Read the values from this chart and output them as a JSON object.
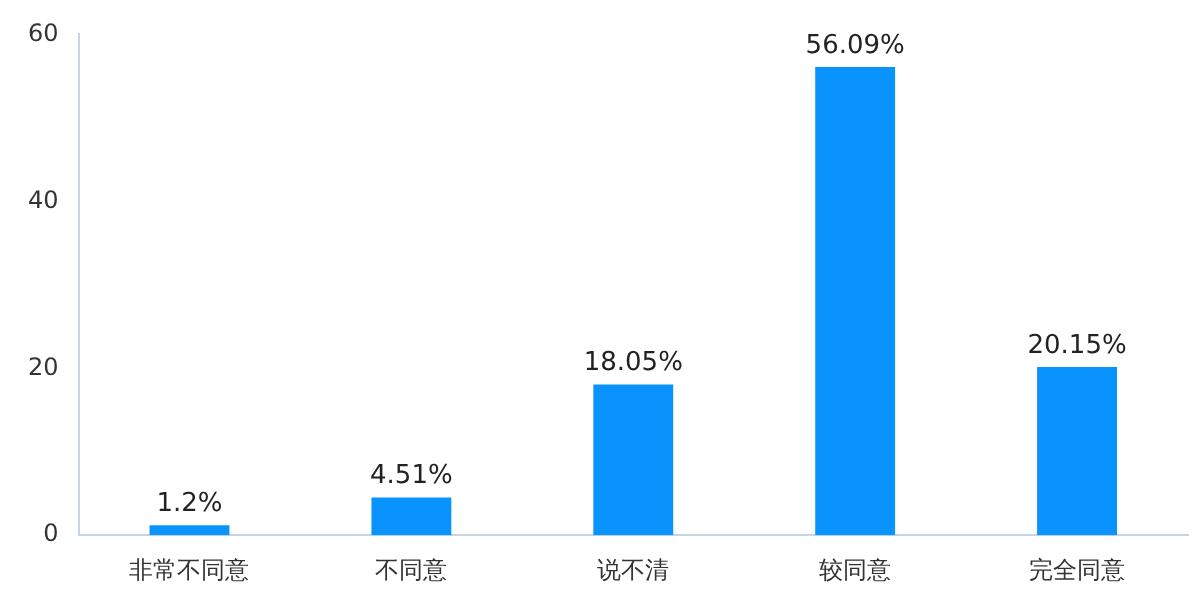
{
  "chart_data": {
    "type": "bar",
    "categories": [
      "非常不同意",
      "不同意",
      "说不清",
      "较同意",
      "完全同意"
    ],
    "values": [
      1.2,
      4.51,
      18.05,
      56.09,
      20.15
    ],
    "value_labels": [
      "1.2%",
      "4.51%",
      "18.05%",
      "56.09%",
      "20.15%"
    ],
    "color": "#0a93fc",
    "ylim": [
      0,
      60
    ],
    "yticks": [
      0,
      20,
      40,
      60
    ],
    "grid": false,
    "legend": false
  }
}
